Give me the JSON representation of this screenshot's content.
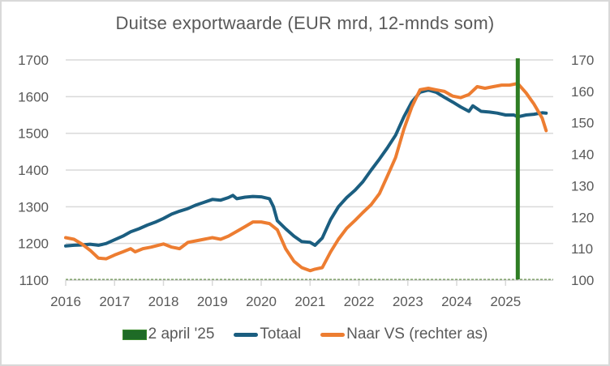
{
  "chart_data": {
    "type": "line",
    "title": "Duitse exportwaarde (EUR mrd, 12-mnds som)",
    "xlabel": "",
    "ylabel_left": "",
    "ylabel_right": "",
    "x_ticks": [
      "2016",
      "2017",
      "2018",
      "2019",
      "2020",
      "2021",
      "2022",
      "2023",
      "2024",
      "2025"
    ],
    "xlim": [
      2016.0,
      2025.95
    ],
    "y_left": {
      "lim": [
        1100,
        1700
      ],
      "ticks": [
        "1100",
        "1200",
        "1300",
        "1400",
        "1500",
        "1600",
        "1700"
      ]
    },
    "y_right": {
      "lim": [
        100,
        170
      ],
      "ticks": [
        "100",
        "110",
        "120",
        "130",
        "140",
        "150",
        "160",
        "170"
      ]
    },
    "grid": true,
    "legend_position": "bottom",
    "marker": {
      "name": "2 april '25",
      "x": 2025.25,
      "color": "#2e7d23"
    },
    "series": [
      {
        "name": "Totaal",
        "axis": "left",
        "color": "#1b5e80",
        "points": [
          [
            2016.0,
            1193
          ],
          [
            2016.17,
            1195
          ],
          [
            2016.33,
            1196
          ],
          [
            2016.5,
            1198
          ],
          [
            2016.67,
            1195
          ],
          [
            2016.83,
            1200
          ],
          [
            2017.0,
            1210
          ],
          [
            2017.17,
            1220
          ],
          [
            2017.33,
            1232
          ],
          [
            2017.5,
            1240
          ],
          [
            2017.67,
            1250
          ],
          [
            2017.83,
            1258
          ],
          [
            2018.0,
            1268
          ],
          [
            2018.17,
            1280
          ],
          [
            2018.33,
            1288
          ],
          [
            2018.5,
            1295
          ],
          [
            2018.67,
            1305
          ],
          [
            2018.83,
            1312
          ],
          [
            2019.0,
            1320
          ],
          [
            2019.17,
            1318
          ],
          [
            2019.33,
            1325
          ],
          [
            2019.42,
            1331
          ],
          [
            2019.5,
            1322
          ],
          [
            2019.67,
            1326
          ],
          [
            2019.83,
            1328
          ],
          [
            2020.0,
            1327
          ],
          [
            2020.17,
            1322
          ],
          [
            2020.25,
            1300
          ],
          [
            2020.33,
            1262
          ],
          [
            2020.5,
            1240
          ],
          [
            2020.67,
            1220
          ],
          [
            2020.83,
            1205
          ],
          [
            2021.0,
            1203
          ],
          [
            2021.1,
            1195
          ],
          [
            2021.25,
            1215
          ],
          [
            2021.42,
            1265
          ],
          [
            2021.58,
            1300
          ],
          [
            2021.75,
            1325
          ],
          [
            2021.92,
            1345
          ],
          [
            2022.08,
            1368
          ],
          [
            2022.25,
            1400
          ],
          [
            2022.42,
            1430
          ],
          [
            2022.58,
            1460
          ],
          [
            2022.75,
            1495
          ],
          [
            2022.92,
            1545
          ],
          [
            2023.08,
            1585
          ],
          [
            2023.25,
            1612
          ],
          [
            2023.42,
            1618
          ],
          [
            2023.58,
            1612
          ],
          [
            2023.75,
            1598
          ],
          [
            2023.92,
            1585
          ],
          [
            2024.08,
            1572
          ],
          [
            2024.25,
            1560
          ],
          [
            2024.33,
            1575
          ],
          [
            2024.5,
            1560
          ],
          [
            2024.67,
            1558
          ],
          [
            2024.83,
            1555
          ],
          [
            2025.0,
            1550
          ],
          [
            2025.17,
            1550
          ],
          [
            2025.25,
            1545
          ],
          [
            2025.42,
            1550
          ],
          [
            2025.58,
            1552
          ],
          [
            2025.75,
            1556
          ],
          [
            2025.83,
            1555
          ]
        ]
      },
      {
        "name": "Naar VS (rechter as)",
        "axis": "right",
        "color": "#ed7d31",
        "points": [
          [
            2016.0,
            113.5
          ],
          [
            2016.17,
            113.0
          ],
          [
            2016.33,
            111.5
          ],
          [
            2016.5,
            109.5
          ],
          [
            2016.67,
            107.0
          ],
          [
            2016.83,
            106.8
          ],
          [
            2017.0,
            108.0
          ],
          [
            2017.17,
            109.0
          ],
          [
            2017.33,
            110.0
          ],
          [
            2017.42,
            109.0
          ],
          [
            2017.58,
            110.0
          ],
          [
            2017.75,
            110.5
          ],
          [
            2018.0,
            111.5
          ],
          [
            2018.17,
            110.5
          ],
          [
            2018.33,
            110.0
          ],
          [
            2018.5,
            112.0
          ],
          [
            2018.67,
            112.5
          ],
          [
            2018.83,
            113.0
          ],
          [
            2019.0,
            113.5
          ],
          [
            2019.17,
            113.0
          ],
          [
            2019.33,
            114.0
          ],
          [
            2019.5,
            115.5
          ],
          [
            2019.67,
            117.0
          ],
          [
            2019.83,
            118.5
          ],
          [
            2020.0,
            118.5
          ],
          [
            2020.17,
            118.0
          ],
          [
            2020.33,
            116.0
          ],
          [
            2020.5,
            110.0
          ],
          [
            2020.67,
            106.0
          ],
          [
            2020.83,
            104.0
          ],
          [
            2021.0,
            103.0
          ],
          [
            2021.1,
            103.5
          ],
          [
            2021.25,
            104.0
          ],
          [
            2021.42,
            109.0
          ],
          [
            2021.58,
            113.0
          ],
          [
            2021.75,
            116.5
          ],
          [
            2021.92,
            119.0
          ],
          [
            2022.08,
            121.5
          ],
          [
            2022.25,
            124.0
          ],
          [
            2022.42,
            127.5
          ],
          [
            2022.58,
            133.0
          ],
          [
            2022.75,
            139.0
          ],
          [
            2022.92,
            148.0
          ],
          [
            2023.08,
            155.0
          ],
          [
            2023.25,
            160.5
          ],
          [
            2023.42,
            161.0
          ],
          [
            2023.58,
            160.5
          ],
          [
            2023.75,
            160.0
          ],
          [
            2023.92,
            158.5
          ],
          [
            2024.08,
            158.0
          ],
          [
            2024.25,
            159.0
          ],
          [
            2024.42,
            161.5
          ],
          [
            2024.58,
            161.0
          ],
          [
            2024.75,
            161.5
          ],
          [
            2024.92,
            162.0
          ],
          [
            2025.08,
            162.0
          ],
          [
            2025.25,
            162.5
          ],
          [
            2025.42,
            159.5
          ],
          [
            2025.58,
            156.0
          ],
          [
            2025.75,
            151.5
          ],
          [
            2025.83,
            147.5
          ]
        ]
      }
    ]
  }
}
